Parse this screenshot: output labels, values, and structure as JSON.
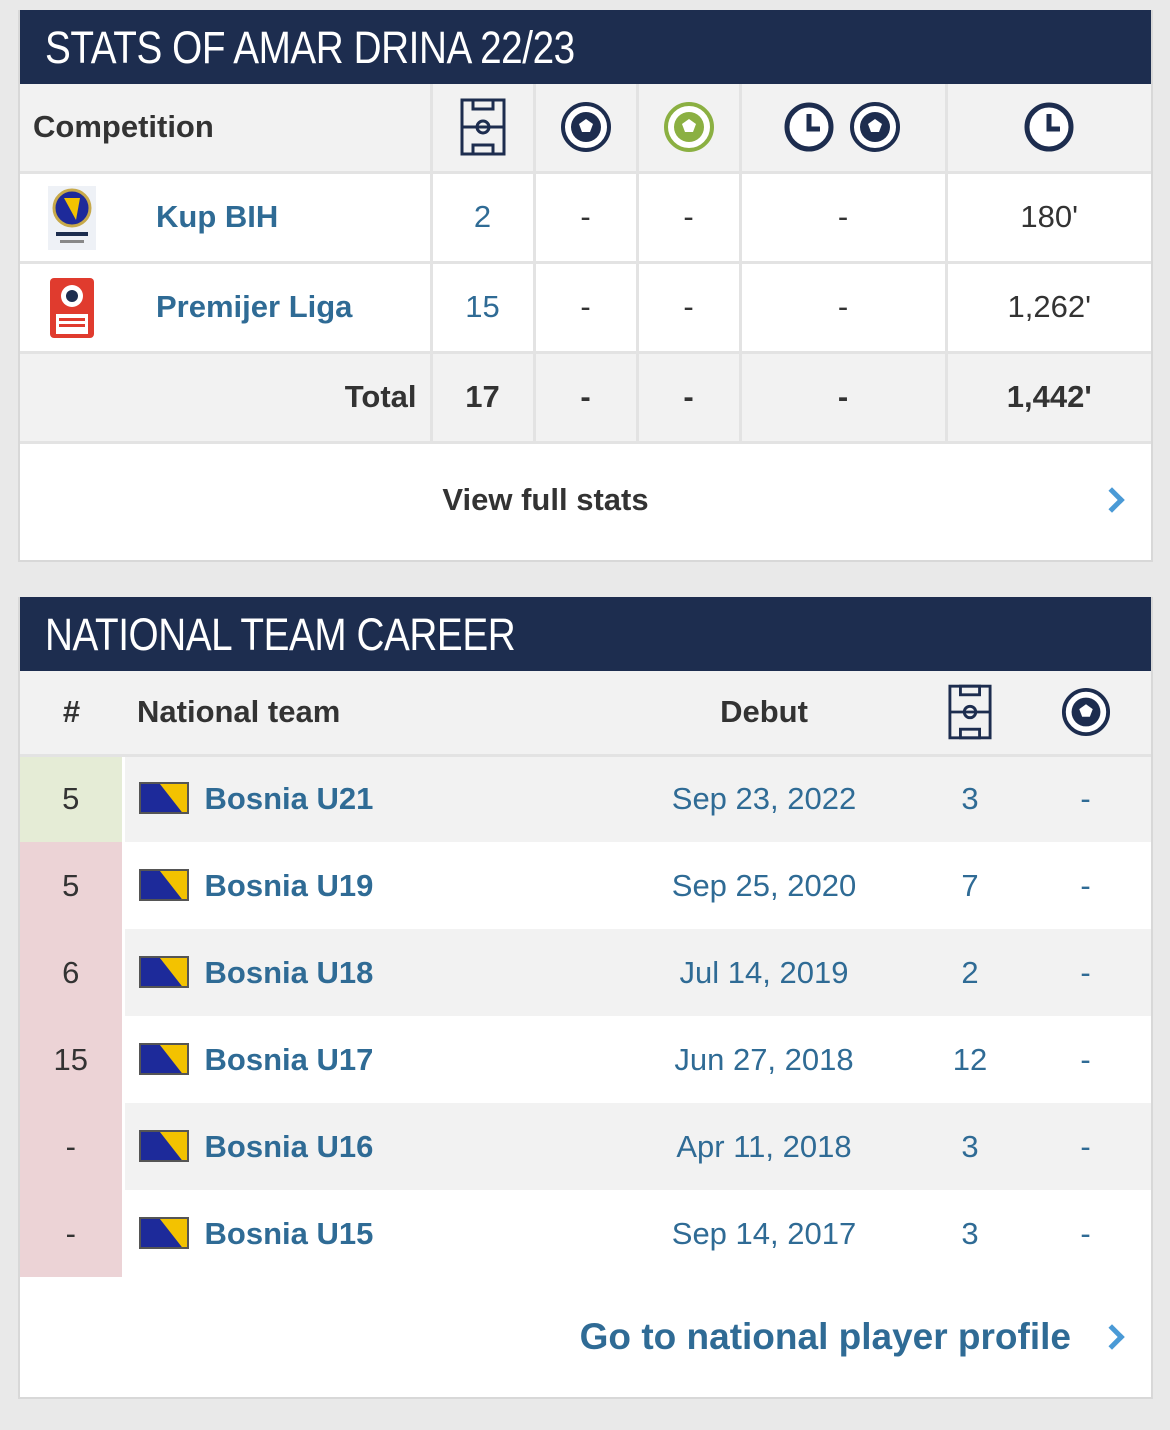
{
  "stats": {
    "title": "STATS OF AMAR DRINA 22/23",
    "header": {
      "competition": "Competition",
      "icons": [
        "pitch-icon",
        "ball-icon",
        "green-ball-icon",
        "clock-ball-icon",
        "clock-icon"
      ]
    },
    "rows": [
      {
        "logo": "kup-bih-logo",
        "name": "Kup BIH",
        "apps": "2",
        "goals": "-",
        "assists": "-",
        "mpg": "-",
        "minutes": "180'"
      },
      {
        "logo": "premijer-liga-logo",
        "name": "Premijer Liga",
        "apps": "15",
        "goals": "-",
        "assists": "-",
        "mpg": "-",
        "minutes": "1,262'"
      }
    ],
    "total": {
      "label": "Total",
      "apps": "17",
      "goals": "-",
      "assists": "-",
      "mpg": "-",
      "minutes": "1,442'"
    },
    "view_full": "View full stats"
  },
  "national": {
    "title": "NATIONAL TEAM CAREER",
    "header": {
      "rank": "#",
      "team": "National team",
      "debut": "Debut",
      "icons": [
        "pitch-icon",
        "ball-icon"
      ]
    },
    "rows": [
      {
        "rank": "5",
        "rank_color": "#e5ecd6",
        "team": "Bosnia U21",
        "debut": "Sep 23, 2022",
        "apps": "3",
        "goals": "-"
      },
      {
        "rank": "5",
        "rank_color": "#ecd3d6",
        "team": "Bosnia U19",
        "debut": "Sep 25, 2020",
        "apps": "7",
        "goals": "-"
      },
      {
        "rank": "6",
        "rank_color": "#ecd3d6",
        "team": "Bosnia U18",
        "debut": "Jul 14, 2019",
        "apps": "2",
        "goals": "-"
      },
      {
        "rank": "15",
        "rank_color": "#ecd3d6",
        "team": "Bosnia U17",
        "debut": "Jun 27, 2018",
        "apps": "12",
        "goals": "-"
      },
      {
        "rank": "-",
        "rank_color": "#ecd3d6",
        "team": "Bosnia U16",
        "debut": "Apr 11, 2018",
        "apps": "3",
        "goals": "-"
      },
      {
        "rank": "-",
        "rank_color": "#ecd3d6",
        "team": "Bosnia U15",
        "debut": "Sep 14, 2017",
        "apps": "3",
        "goals": "-"
      }
    ],
    "profile_link": "Go to national player profile"
  },
  "colors": {
    "header_bg": "#1d2d4f",
    "link": "#2f6b95",
    "chevron": "#4a9ad6",
    "green_ball": "#8bb042"
  }
}
